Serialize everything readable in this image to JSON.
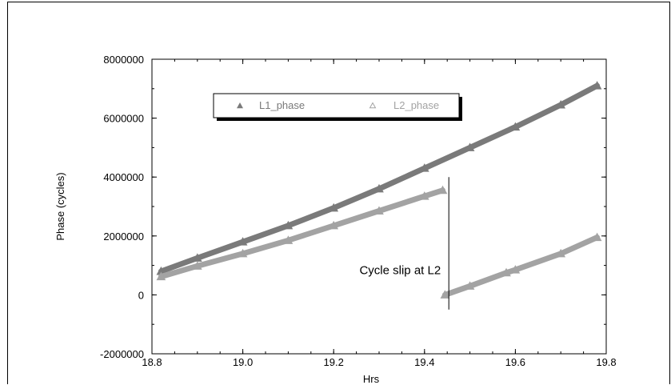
{
  "chart_data": {
    "type": "scatter",
    "title": "",
    "xlabel": "Hrs",
    "ylabel": "Phase (cycles)",
    "xlim": [
      18.8,
      19.8
    ],
    "ylim": [
      -2000000,
      8000000
    ],
    "x_ticks": [
      18.8,
      19.0,
      19.2,
      19.4,
      19.6,
      19.8
    ],
    "x_tick_labels": [
      "18.8",
      "19.0",
      "19.2",
      "19.4",
      "19.6",
      "19.8"
    ],
    "y_ticks": [
      -2000000,
      0,
      2000000,
      4000000,
      6000000,
      8000000
    ],
    "y_tick_labels": [
      "-2000000",
      "0",
      "2000000",
      "4000000",
      "6000000",
      "8000000"
    ],
    "grid": false,
    "legend_position": "top-left",
    "series": [
      {
        "name": "L1_phase",
        "color": "#7a7a7a",
        "marker": "filled-triangle",
        "x": [
          18.82,
          18.9,
          19.0,
          19.1,
          19.2,
          19.3,
          19.4,
          19.5,
          19.6,
          19.7,
          19.78
        ],
        "y": [
          800000,
          1250000,
          1800000,
          2350000,
          2950000,
          3600000,
          4300000,
          5000000,
          5700000,
          6450000,
          7100000
        ]
      },
      {
        "name": "L2_phase",
        "color": "#a3a3a3",
        "marker": "open-triangle",
        "x": [
          18.82,
          18.9,
          19.0,
          19.1,
          19.2,
          19.3,
          19.4,
          19.44,
          19.445,
          19.5,
          19.58,
          19.6,
          19.7,
          19.78
        ],
        "y": [
          620000,
          980000,
          1400000,
          1850000,
          2350000,
          2850000,
          3350000,
          3550000,
          0,
          300000,
          750000,
          850000,
          1400000,
          1950000
        ]
      }
    ],
    "annotations": [
      {
        "text": "Cycle slip at L2",
        "x": 19.45
      }
    ]
  }
}
